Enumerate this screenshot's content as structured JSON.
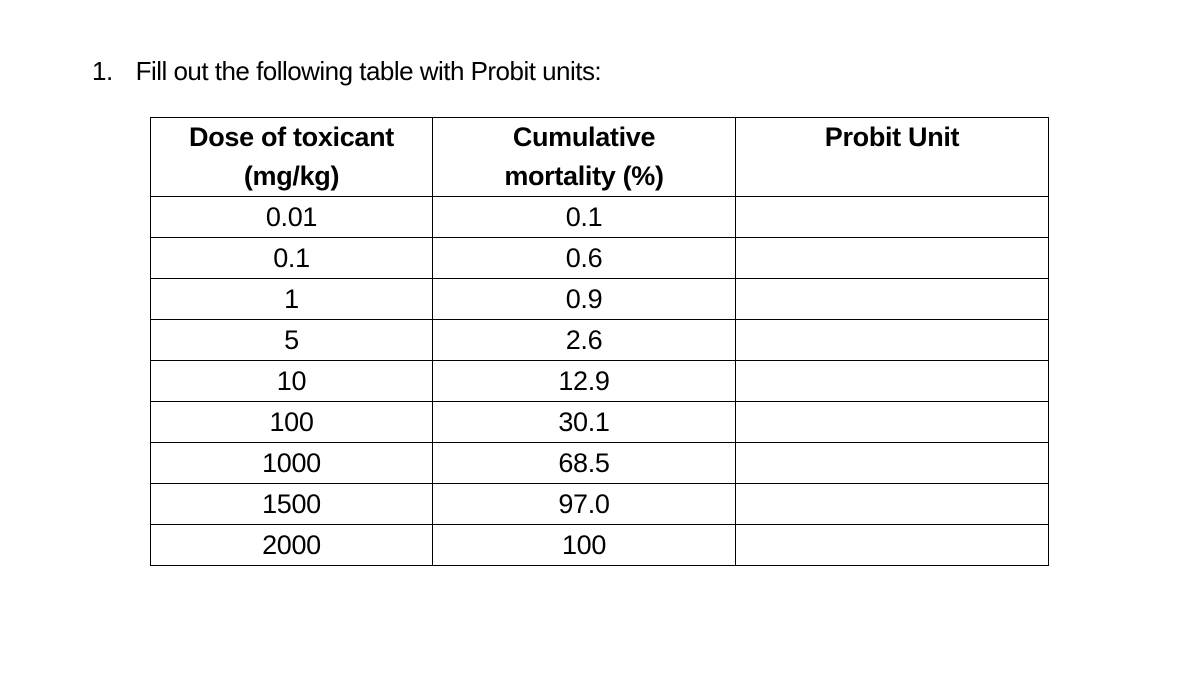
{
  "heading": {
    "number": "1.",
    "text": "Fill out the following table with Probit units:"
  },
  "table": {
    "headers": [
      {
        "line1": "Dose of toxicant",
        "line2": "(mg/kg)"
      },
      {
        "line1": "Cumulative",
        "line2": "mortality (%)"
      },
      {
        "line1": "Probit Unit",
        "line2": ""
      }
    ],
    "rows": [
      {
        "dose": "0.01",
        "mortality": "0.1",
        "probit": ""
      },
      {
        "dose": "0.1",
        "mortality": "0.6",
        "probit": ""
      },
      {
        "dose": "1",
        "mortality": "0.9",
        "probit": ""
      },
      {
        "dose": "5",
        "mortality": "2.6",
        "probit": ""
      },
      {
        "dose": "10",
        "mortality": "12.9",
        "probit": ""
      },
      {
        "dose": "100",
        "mortality": "30.1",
        "probit": ""
      },
      {
        "dose": "1000",
        "mortality": "68.5",
        "probit": ""
      },
      {
        "dose": "1500",
        "mortality": "97.0",
        "probit": ""
      },
      {
        "dose": "2000",
        "mortality": "100",
        "probit": ""
      }
    ]
  }
}
